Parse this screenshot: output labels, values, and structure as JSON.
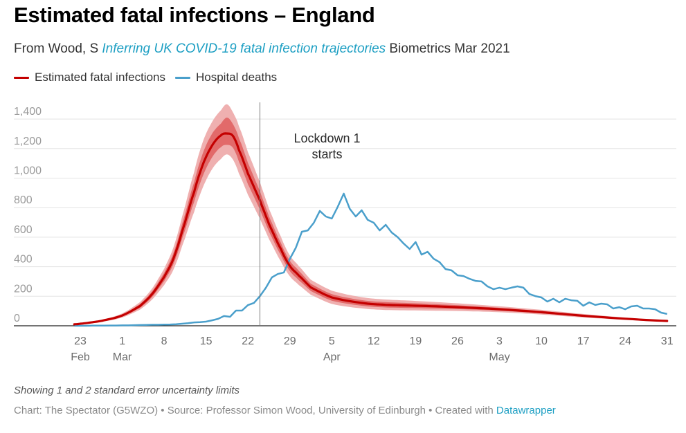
{
  "header": {
    "title": "Estimated fatal infections – England",
    "subtitle_prefix": "From Wood, S ",
    "subtitle_link": "Inferring UK COVID-19 fatal infection trajectories",
    "subtitle_suffix": " Biometrics Mar 2021"
  },
  "footer": {
    "note": "Showing 1 and 2 standard error uncertainty limits",
    "source_prefix": "Chart: The Spectator (G5WZO) • Source: Professor Simon Wood, University of Edinburgh • Created with ",
    "source_link": "Datawrapper"
  },
  "colors": {
    "estimate_line": "#c40000",
    "inner_band": "#e26a6a",
    "outer_band": "#efb0b0",
    "hospital_line": "#4a9fcb",
    "grid": "#e3e3e3",
    "axis": "#222222",
    "annotation_line": "#777777"
  },
  "chart_data": {
    "type": "line",
    "title": "Estimated fatal infections – England",
    "xlabel": "",
    "ylabel": "",
    "x_unit": "days since 23 Feb 2020",
    "xlim": [
      -1,
      98
    ],
    "ylim": [
      0,
      1400
    ],
    "y_ticks": [
      0,
      200,
      400,
      600,
      800,
      1000,
      1200,
      1400
    ],
    "y_tick_labels": [
      "0",
      "200",
      "400",
      "600",
      "800",
      "1,000",
      "1,200",
      "1,400"
    ],
    "grid": true,
    "legend_position": "top-left",
    "x_ticks": [
      {
        "day": 0,
        "label": "23",
        "month": "Feb"
      },
      {
        "day": 7,
        "label": "1",
        "month": "Mar"
      },
      {
        "day": 14,
        "label": "8",
        "month": ""
      },
      {
        "day": 21,
        "label": "15",
        "month": ""
      },
      {
        "day": 28,
        "label": "22",
        "month": ""
      },
      {
        "day": 35,
        "label": "29",
        "month": ""
      },
      {
        "day": 42,
        "label": "5",
        "month": "Apr"
      },
      {
        "day": 49,
        "label": "12",
        "month": ""
      },
      {
        "day": 56,
        "label": "19",
        "month": ""
      },
      {
        "day": 63,
        "label": "26",
        "month": ""
      },
      {
        "day": 70,
        "label": "3",
        "month": "May"
      },
      {
        "day": 77,
        "label": "10",
        "month": ""
      },
      {
        "day": 84,
        "label": "17",
        "month": ""
      },
      {
        "day": 91,
        "label": "24",
        "month": ""
      },
      {
        "day": 98,
        "label": "31",
        "month": ""
      }
    ],
    "annotations": [
      {
        "day": 30,
        "text_line1": "Lockdown 1",
        "text_line2": "starts",
        "label_y_value": 1320
      }
    ],
    "series": [
      {
        "name": "Estimated fatal infections",
        "days": [
          -1,
          0,
          2,
          4,
          7,
          10,
          12,
          14,
          15.5,
          17,
          19,
          20.5,
          22,
          23.5,
          24.5,
          25.5,
          26.5,
          28,
          30,
          31.5,
          33.5,
          35,
          36.5,
          38.5,
          42,
          47,
          51,
          56,
          63,
          70,
          77,
          84,
          91,
          98
        ],
        "values": [
          10,
          14,
          24,
          38,
          70,
          135,
          215,
          330,
          450,
          640,
          905,
          1095,
          1220,
          1290,
          1302,
          1285,
          1190,
          1030,
          850,
          690,
          520,
          405,
          340,
          260,
          192,
          155,
          142,
          136,
          126,
          112,
          92,
          68,
          48,
          33
        ],
        "inner_lower": [
          8,
          12,
          21,
          34,
          63,
          122,
          196,
          302,
          413,
          590,
          838,
          1018,
          1140,
          1210,
          1225,
          1205,
          1110,
          958,
          788,
          638,
          478,
          370,
          308,
          235,
          170,
          136,
          124,
          120,
          113,
          102,
          84,
          62,
          44,
          30
        ],
        "inner_upper": [
          12,
          16,
          27,
          42,
          77,
          148,
          234,
          358,
          487,
          690,
          972,
          1172,
          1300,
          1370,
          1410,
          1365,
          1270,
          1102,
          912,
          742,
          562,
          440,
          372,
          285,
          214,
          174,
          160,
          152,
          139,
          122,
          100,
          74,
          52,
          36
        ],
        "outer_lower": [
          6,
          10,
          18,
          30,
          56,
          110,
          178,
          275,
          375,
          540,
          770,
          940,
          1060,
          1130,
          1160,
          1125,
          1030,
          886,
          726,
          588,
          436,
          335,
          276,
          210,
          148,
          118,
          107,
          104,
          100,
          92,
          76,
          56,
          40,
          27
        ],
        "outer_upper": [
          14,
          18,
          30,
          46,
          84,
          161,
          253,
          386,
          525,
          740,
          1040,
          1250,
          1380,
          1460,
          1500,
          1445,
          1350,
          1175,
          974,
          794,
          604,
          476,
          404,
          312,
          238,
          194,
          178,
          168,
          152,
          132,
          108,
          80,
          56,
          39
        ]
      },
      {
        "name": "Hospital deaths",
        "days": [
          -1,
          0,
          1,
          2,
          3,
          4,
          5,
          6,
          7,
          8,
          9,
          10,
          11,
          12,
          13,
          14,
          15,
          16,
          17,
          18,
          19,
          20,
          21,
          22,
          23,
          24,
          25,
          26,
          27,
          28,
          29,
          30,
          31,
          32,
          33,
          34,
          35,
          36,
          37,
          38,
          39,
          40,
          41,
          42,
          43,
          44,
          45,
          46,
          47,
          48,
          49,
          50,
          51,
          52,
          53,
          54,
          55,
          56,
          57,
          58,
          59,
          60,
          61,
          62,
          63,
          64,
          65,
          66,
          67,
          68,
          69,
          70,
          71,
          72,
          73,
          74,
          75,
          76,
          77,
          78,
          79,
          80,
          81,
          82,
          83,
          84,
          85,
          86,
          87,
          88,
          89,
          90,
          91,
          92,
          93,
          94,
          95,
          96,
          97,
          98
        ],
        "values": [
          0,
          0,
          0,
          1,
          1,
          1,
          2,
          2,
          3,
          3,
          4,
          5,
          6,
          7,
          7,
          8,
          9,
          11,
          14,
          18,
          23,
          25,
          28,
          37,
          47,
          66,
          61,
          103,
          103,
          140,
          155,
          201,
          258,
          328,
          351,
          361,
          454,
          529,
          637,
          646,
          698,
          778,
          740,
          726,
          806,
          895,
          792,
          740,
          782,
          717,
          698,
          646,
          684,
          632,
          600,
          557,
          520,
          567,
          482,
          501,
          454,
          431,
          384,
          375,
          342,
          337,
          318,
          304,
          300,
          267,
          248,
          258,
          248,
          258,
          267,
          258,
          215,
          201,
          192,
          164,
          183,
          159,
          183,
          173,
          169,
          136,
          159,
          141,
          150,
          145,
          117,
          126,
          112,
          131,
          136,
          117,
          117,
          112,
          89,
          80
        ]
      }
    ]
  }
}
